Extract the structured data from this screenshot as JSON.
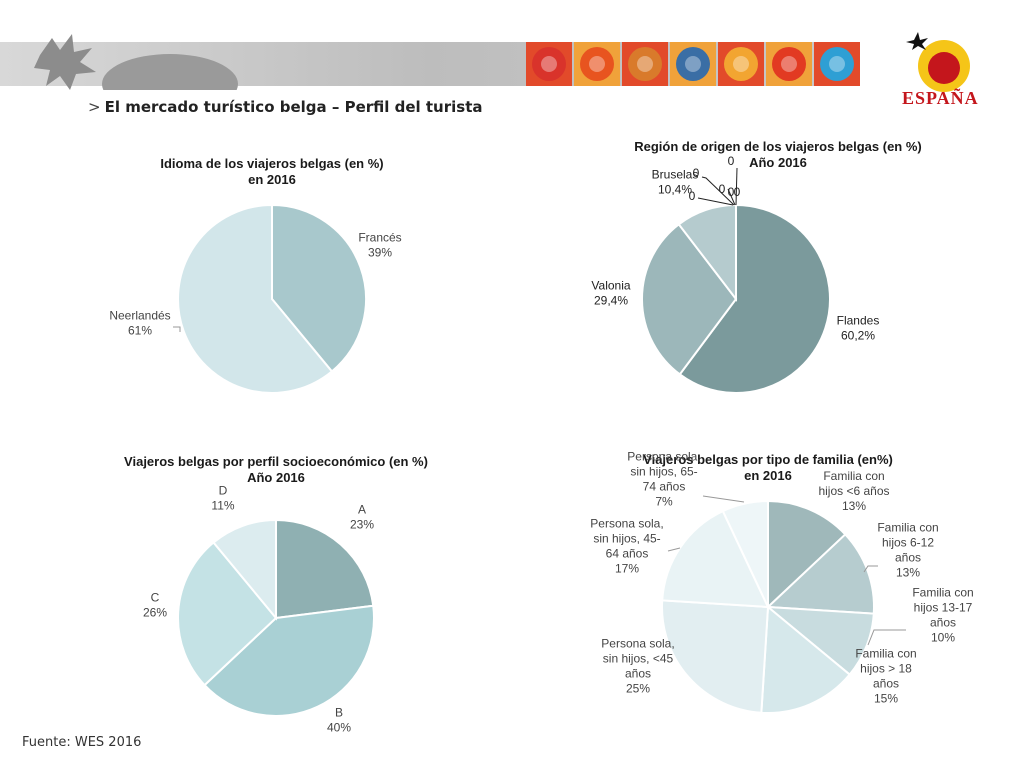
{
  "header": {
    "title": "El mercado turístico belga – Perfil del turista",
    "arrow": ">",
    "brand": "ESPAÑA"
  },
  "source": "Fuente: WES 2016",
  "colors": {
    "tiles": [
      "#d9332b",
      "#e8541f",
      "#d97a2b",
      "#3a6ea5",
      "#f2a531",
      "#e23a22",
      "#2e9fd4"
    ]
  },
  "chart_data": [
    {
      "type": "pie",
      "title_lines": [
        "Idioma de los viajeros belgas (en %)",
        "en 2016"
      ],
      "categories": [
        "Francés",
        "Neerlandés"
      ],
      "values": [
        39,
        61
      ],
      "labels": [
        [
          "Francés",
          "39%"
        ],
        [
          "Neerlandés",
          "61%"
        ]
      ],
      "colors": [
        "#a8c8cc",
        "#d2e6ea"
      ]
    },
    {
      "type": "pie",
      "title_lines": [
        "Región de origen de los viajeros belgas (en %)",
        "Año 2016"
      ],
      "categories": [
        "Flandes",
        "Valonia",
        "Bruselas"
      ],
      "values": [
        60.2,
        29.4,
        10.4
      ],
      "labels": [
        [
          "Flandes",
          "60,2%"
        ],
        [
          "Valonia",
          "29,4%"
        ],
        [
          "Bruselas",
          "10,4%"
        ]
      ],
      "zero_labels": [
        "0",
        "0",
        "0",
        "0",
        "0",
        "0"
      ],
      "colors": [
        "#7b9a9c",
        "#9cb7ba",
        "#b5cbce"
      ]
    },
    {
      "type": "pie",
      "title_lines": [
        "Viajeros belgas por perfil socioeconómico (en %)",
        "Año 2016"
      ],
      "categories": [
        "A",
        "B",
        "C",
        "D"
      ],
      "values": [
        23,
        40,
        26,
        11
      ],
      "labels": [
        [
          "A",
          "23%"
        ],
        [
          "B",
          "40%"
        ],
        [
          "C",
          "26%"
        ],
        [
          "D",
          "11%"
        ]
      ],
      "colors": [
        "#8fb0b2",
        "#a9d0d4",
        "#c4e2e5",
        "#dcecef"
      ]
    },
    {
      "type": "pie",
      "title_lines": [
        "Viajeros belgas por tipo de familia (en%)",
        "en 2016"
      ],
      "categories": [
        "Familia con hijos <6 años",
        "Familia con hijos 6-12 años",
        "Familia con hijos 13-17 años",
        "Familia con hijos > 18 años",
        "Persona sola, sin hijos, <45 años",
        "Persona sola, sin hijos, 45-64 años",
        "Persona sola, sin hijos, 65-74 años"
      ],
      "values": [
        13,
        13,
        10,
        15,
        25,
        17,
        7
      ],
      "labels": [
        [
          "Familia con",
          "hijos <6 años",
          "13%"
        ],
        [
          "Familia con",
          "hijos 6-12",
          "años",
          "13%"
        ],
        [
          "Familia con",
          "hijos 13-17",
          "años",
          "10%"
        ],
        [
          "Familia con",
          "hijos > 18",
          "años",
          "15%"
        ],
        [
          "Persona sola,",
          "sin hijos, <45",
          "años",
          "25%"
        ],
        [
          "Persona sola,",
          "sin hijos, 45-",
          "64 años",
          "17%"
        ],
        [
          "Persona sola,",
          "sin hijos, 65-",
          "74 años",
          "7%"
        ]
      ],
      "colors": [
        "#9fb8ba",
        "#b6cccf",
        "#c8dcdf",
        "#d6e8eb",
        "#e2eef1",
        "#e9f3f5",
        "#eef6f8"
      ]
    }
  ]
}
